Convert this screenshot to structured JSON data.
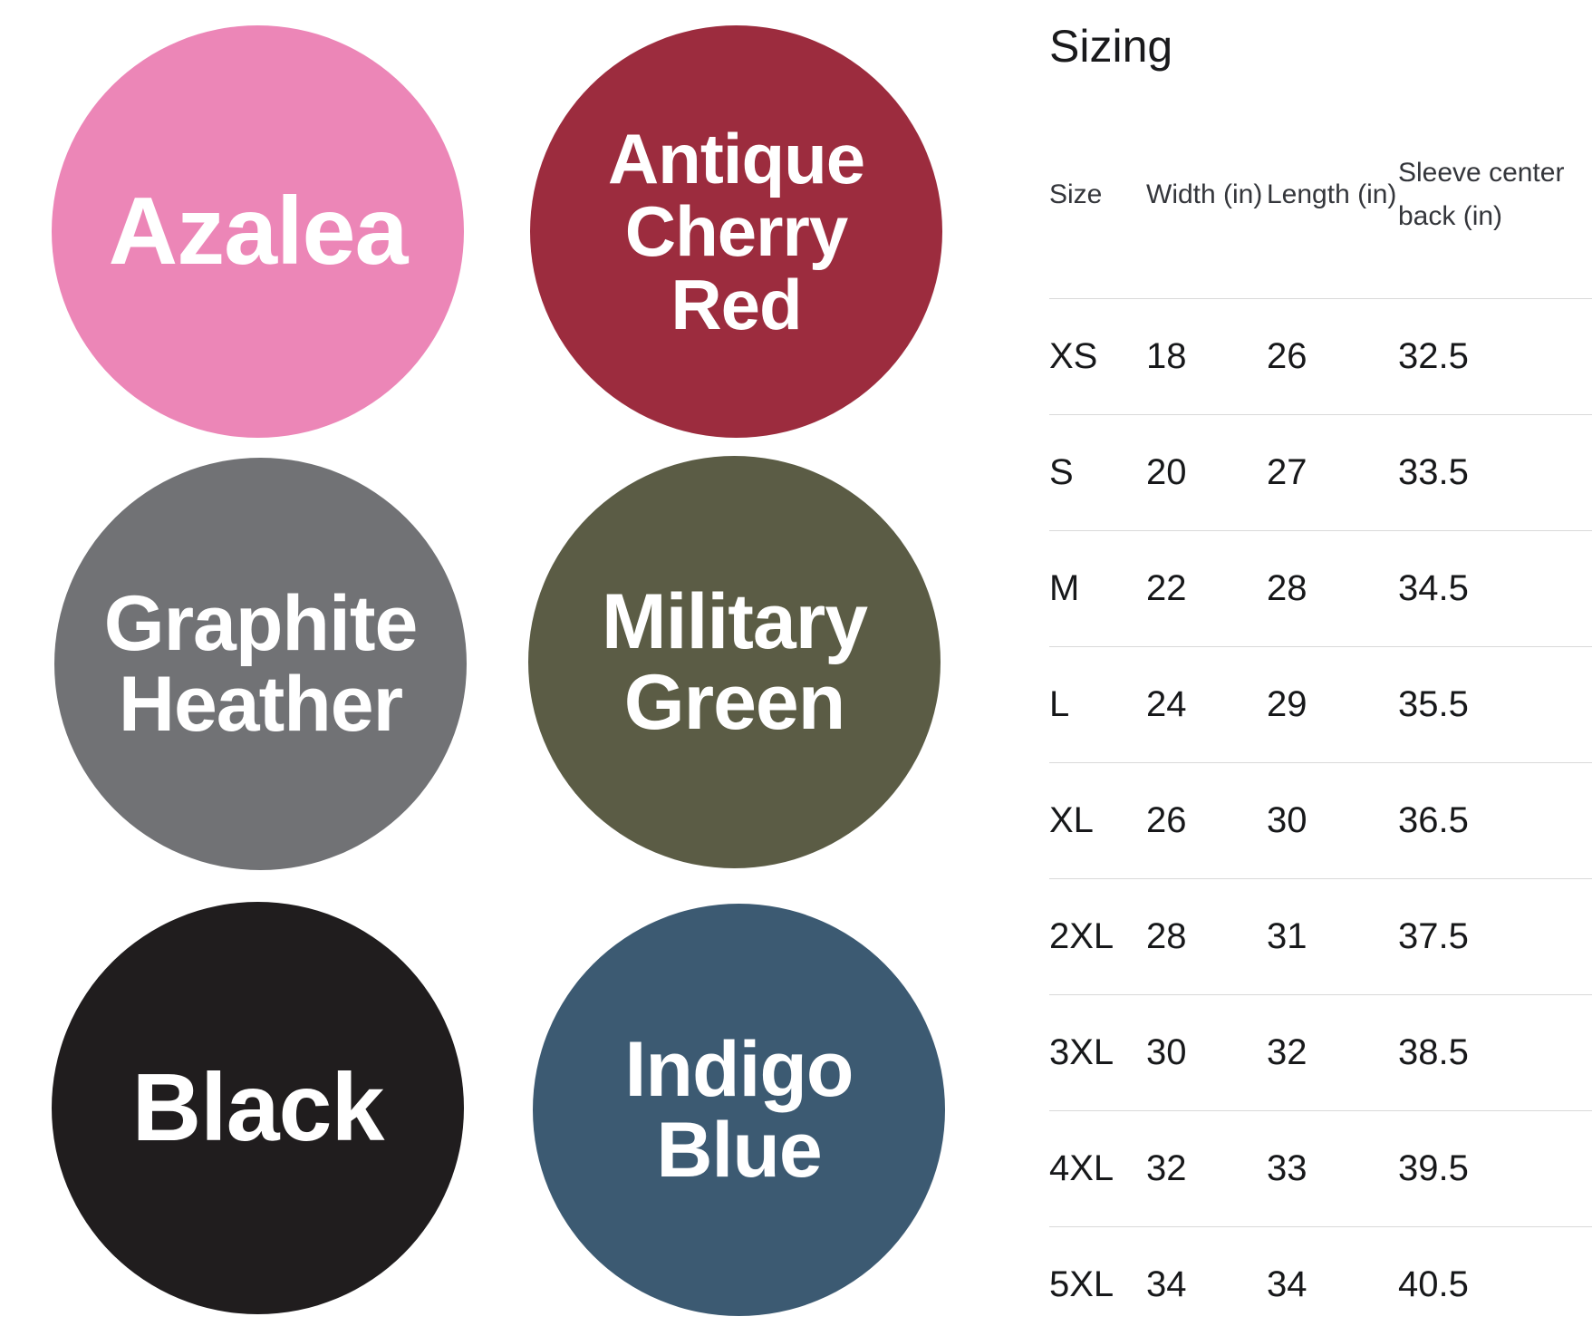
{
  "page": {
    "background": "#ffffff"
  },
  "swatches": {
    "label_text_color": "#ffffff",
    "items": [
      {
        "label": "Azalea",
        "color": "#ec86b7"
      },
      {
        "label": "Antique Cherry Red",
        "color": "#9c2c3e"
      },
      {
        "label": "Graphite Heather",
        "color": "#717275"
      },
      {
        "label": "Military Green",
        "color": "#5b5c45"
      },
      {
        "label": "Black",
        "color": "#201d1e"
      },
      {
        "label": "Indigo Blue",
        "color": "#3c5a72"
      }
    ]
  },
  "sizing": {
    "title": "Sizing",
    "columns": [
      "Size",
      "Width (in)",
      "Length (in)",
      "Sleeve center back (in)"
    ],
    "rows": [
      {
        "size": "XS",
        "width": "18",
        "length": "26",
        "sleeve": "32.5"
      },
      {
        "size": "S",
        "width": "20",
        "length": "27",
        "sleeve": "33.5"
      },
      {
        "size": "M",
        "width": "22",
        "length": "28",
        "sleeve": "34.5"
      },
      {
        "size": "L",
        "width": "24",
        "length": "29",
        "sleeve": "35.5"
      },
      {
        "size": "XL",
        "width": "26",
        "length": "30",
        "sleeve": "36.5"
      },
      {
        "size": "2XL",
        "width": "28",
        "length": "31",
        "sleeve": "37.5"
      },
      {
        "size": "3XL",
        "width": "30",
        "length": "32",
        "sleeve": "38.5"
      },
      {
        "size": "4XL",
        "width": "32",
        "length": "33",
        "sleeve": "39.5"
      },
      {
        "size": "5XL",
        "width": "34",
        "length": "34",
        "sleeve": "40.5"
      }
    ]
  },
  "chart_data": {
    "type": "table",
    "title": "Sizing",
    "columns": [
      "Size",
      "Width (in)",
      "Length (in)",
      "Sleeve center back (in)"
    ],
    "rows": [
      [
        "XS",
        18,
        26,
        32.5
      ],
      [
        "S",
        20,
        27,
        33.5
      ],
      [
        "M",
        22,
        28,
        34.5
      ],
      [
        "L",
        24,
        29,
        35.5
      ],
      [
        "XL",
        26,
        30,
        36.5
      ],
      [
        "2XL",
        28,
        31,
        37.5
      ],
      [
        "3XL",
        30,
        32,
        38.5
      ],
      [
        "4XL",
        32,
        33,
        39.5
      ],
      [
        "5XL",
        34,
        34,
        40.5
      ]
    ],
    "color_options": [
      "Azalea",
      "Antique Cherry Red",
      "Graphite Heather",
      "Military Green",
      "Black",
      "Indigo Blue"
    ]
  }
}
